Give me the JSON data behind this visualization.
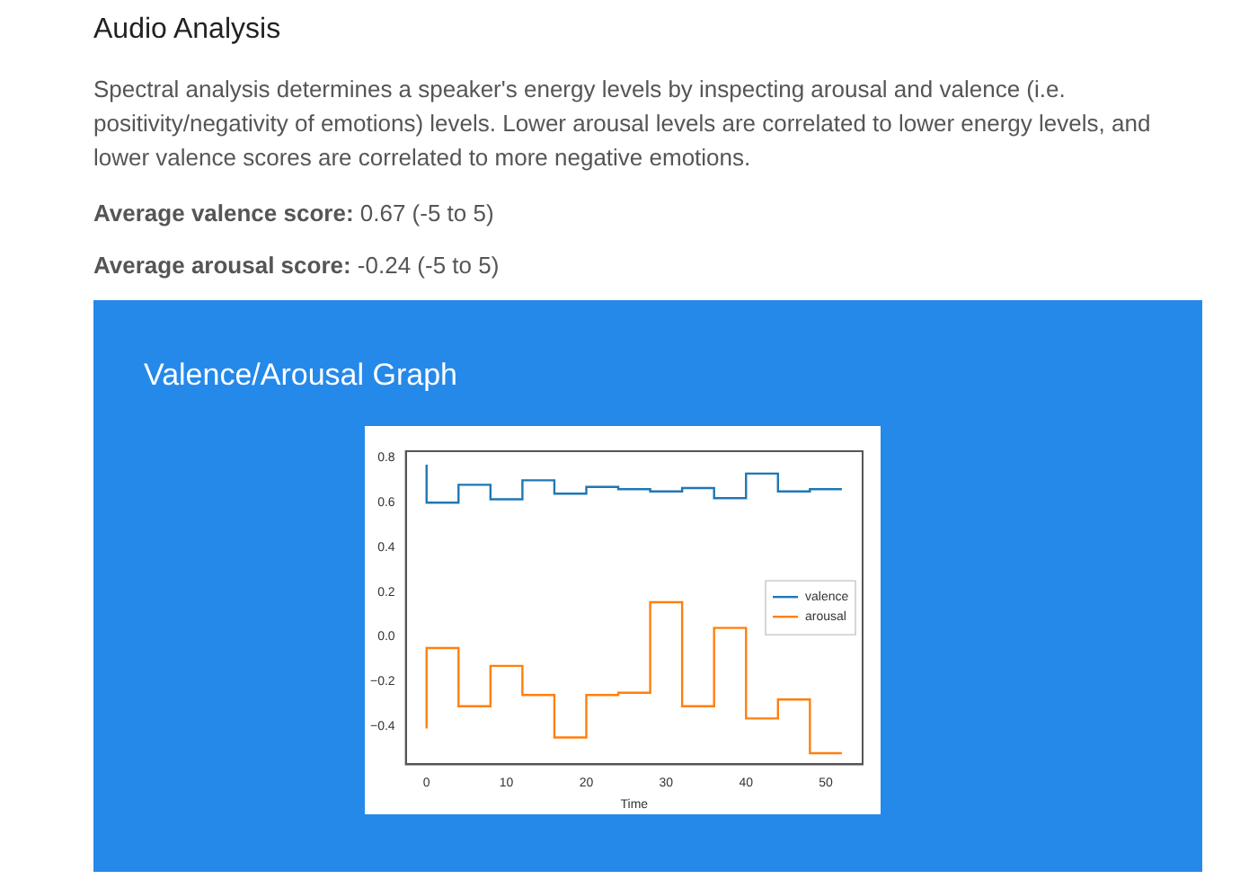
{
  "chart_data": {
    "type": "step",
    "title": "Audio Analysis",
    "subtitle": "Spectral analysis determines a speaker's energy levels by inspecting arousal and valence (i.e. positivity/negativity of emotions) levels. Lower arousal levels are correlated to lower energy levels, and lower valence scores are correlated to more negative emotions.",
    "annotations": [
      "Average valence score: 0.67 (-5 to 5)",
      "Average arousal score: -0.24 (-5 to 5)",
      "Valence/Arousal Graph"
    ],
    "x": [
      0,
      4,
      8,
      12,
      16,
      20,
      24,
      28,
      32,
      36,
      40,
      44,
      48,
      52
    ],
    "series": [
      {
        "name": "valence",
        "color": "#1f77b4",
        "values": [
          0.77,
          0.6,
          0.68,
          0.615,
          0.7,
          0.64,
          0.67,
          0.66,
          0.65,
          0.665,
          0.62,
          0.73,
          0.65,
          0.66
        ]
      },
      {
        "name": "arousal",
        "color": "#ff7f0e",
        "values": [
          -0.41,
          -0.05,
          -0.31,
          -0.13,
          -0.26,
          -0.45,
          -0.26,
          -0.25,
          0.155,
          -0.31,
          0.04,
          -0.365,
          -0.28,
          -0.52
        ]
      }
    ],
    "xlabel": "Time",
    "xlim": [
      -2.6,
      54.6
    ],
    "xticks": [
      0,
      10,
      20,
      30,
      40,
      50
    ],
    "ylim": [
      -0.57,
      0.83
    ],
    "yticks": [
      {
        "value": -0.4,
        "label": "−0.4"
      },
      {
        "value": -0.2,
        "label": "−0.2"
      },
      {
        "value": 0,
        "label": "0.0"
      },
      {
        "value": 0.2,
        "label": "0.2"
      },
      {
        "value": 0.4,
        "label": "0.4"
      },
      {
        "value": 0.6,
        "label": "0.6"
      },
      {
        "value": 0.8,
        "label": "0.8"
      }
    ],
    "grid": false,
    "legend": "right"
  }
}
